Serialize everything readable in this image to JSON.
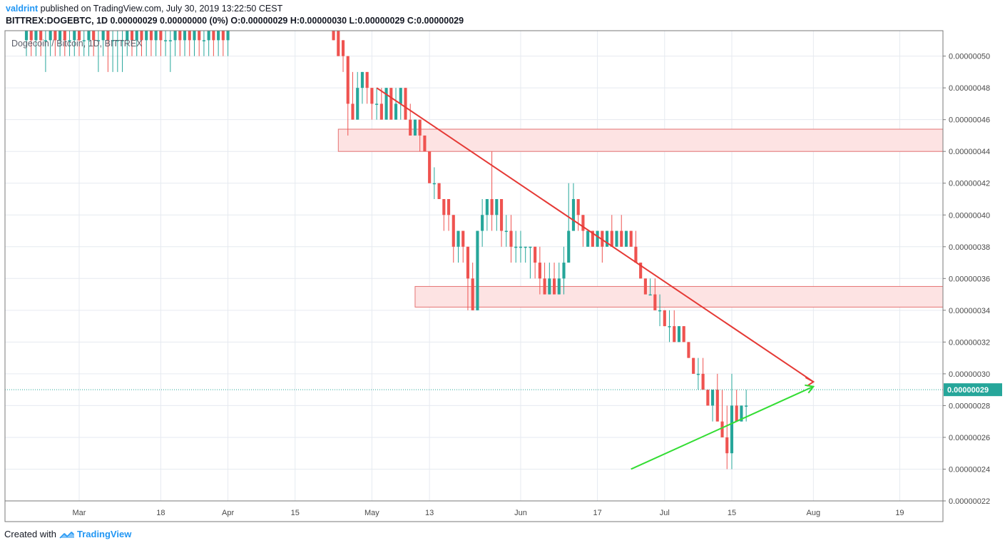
{
  "header": {
    "author": "valdrint",
    "published": " published on TradingView.com, July 30, 2019 13:22:50 CEST",
    "symbol_line": "BITTREX:DOGEBTC, 1D  0.00000029 0.00000000 (0%) O:0.00000029 H:0.00000030 L:0.00000029 C:0.00000029"
  },
  "legend": "Dogecoin / Bitcoin, 1D, BITTREX",
  "footer": {
    "created_with": "Created with",
    "brand": "TradingView"
  },
  "colors": {
    "up": "#26a69a",
    "down": "#ef5350",
    "resistance_line": "#e53935",
    "support_line": "#33dd33",
    "zone_fill": "#fde3e3",
    "zone_stroke": "#e57373",
    "price_badge": "#26a69a",
    "grid": "#e6eaf0"
  },
  "chart_data": {
    "type": "candlestick",
    "title": "Dogecoin / Bitcoin, 1D, BITTREX",
    "y_unit": "BTC",
    "ylim": [
      2.2e-07,
      5.16e-07
    ],
    "y_ticks": [
      "0.00000050",
      "0.00000048",
      "0.00000046",
      "0.00000044",
      "0.00000042",
      "0.00000040",
      "0.00000038",
      "0.00000036",
      "0.00000034",
      "0.00000032",
      "0.00000030",
      "0.00000028",
      "0.00000026",
      "0.00000024",
      "0.00000022"
    ],
    "x_ticks": [
      "Mar",
      "18",
      "Apr",
      "15",
      "May",
      "13",
      "Jun",
      "17",
      "Jul",
      "15",
      "Aug",
      "19"
    ],
    "x_tick_dates": [
      "2019-03-01",
      "2019-03-18",
      "2019-04-01",
      "2019-04-15",
      "2019-05-01",
      "2019-05-13",
      "2019-06-01",
      "2019-06-17",
      "2019-07-01",
      "2019-07-15",
      "2019-08-01",
      "2019-08-19"
    ],
    "xlim": [
      "2019-02-18",
      "2019-08-28"
    ],
    "last_price": "0.00000029",
    "candles": [
      {
        "d": "2019-02-18",
        "o": 5.1e-07,
        "h": 5.2e-07,
        "l": 5e-07,
        "c": 5.2e-07
      },
      {
        "d": "2019-02-19",
        "o": 5.2e-07,
        "h": 5.2e-07,
        "l": 5e-07,
        "c": 5.1e-07
      },
      {
        "d": "2019-02-20",
        "o": 5.1e-07,
        "h": 5.2e-07,
        "l": 5e-07,
        "c": 5.2e-07
      },
      {
        "d": "2019-02-21",
        "o": 5.2e-07,
        "h": 5.2e-07,
        "l": 5e-07,
        "c": 5.1e-07
      },
      {
        "d": "2019-02-22",
        "o": 5.1e-07,
        "h": 5.2e-07,
        "l": 4.9e-07,
        "c": 5.1e-07
      },
      {
        "d": "2019-02-23",
        "o": 5.1e-07,
        "h": 5.2e-07,
        "l": 5e-07,
        "c": 5.2e-07
      },
      {
        "d": "2019-02-24",
        "o": 5.2e-07,
        "h": 5.2e-07,
        "l": 5e-07,
        "c": 5.1e-07
      },
      {
        "d": "2019-02-25",
        "o": 5.1e-07,
        "h": 5.2e-07,
        "l": 5e-07,
        "c": 5.2e-07
      },
      {
        "d": "2019-02-26",
        "o": 5.2e-07,
        "h": 5.2e-07,
        "l": 5e-07,
        "c": 5.1e-07
      },
      {
        "d": "2019-02-27",
        "o": 5.1e-07,
        "h": 5.2e-07,
        "l": 5e-07,
        "c": 5.1e-07
      },
      {
        "d": "2019-02-28",
        "o": 5.1e-07,
        "h": 5.2e-07,
        "l": 5e-07,
        "c": 5.2e-07
      },
      {
        "d": "2019-03-01",
        "o": 5.2e-07,
        "h": 5.2e-07,
        "l": 5e-07,
        "c": 5.1e-07
      },
      {
        "d": "2019-03-02",
        "o": 5.1e-07,
        "h": 5.2e-07,
        "l": 5e-07,
        "c": 5.1e-07
      },
      {
        "d": "2019-03-03",
        "o": 5.1e-07,
        "h": 5.2e-07,
        "l": 5e-07,
        "c": 5.2e-07
      },
      {
        "d": "2019-03-04",
        "o": 5.2e-07,
        "h": 5.2e-07,
        "l": 5e-07,
        "c": 5.1e-07
      },
      {
        "d": "2019-03-05",
        "o": 5.1e-07,
        "h": 5.2e-07,
        "l": 4.9e-07,
        "c": 5.1e-07
      },
      {
        "d": "2019-03-06",
        "o": 5.1e-07,
        "h": 5.2e-07,
        "l": 5e-07,
        "c": 5.2e-07
      },
      {
        "d": "2019-03-07",
        "o": 5.2e-07,
        "h": 5.2e-07,
        "l": 4.9e-07,
        "c": 5.1e-07
      },
      {
        "d": "2019-03-08",
        "o": 5.1e-07,
        "h": 5.2e-07,
        "l": 4.9e-07,
        "c": 5.1e-07
      },
      {
        "d": "2019-03-09",
        "o": 5.1e-07,
        "h": 5.2e-07,
        "l": 4.9e-07,
        "c": 5.1e-07
      },
      {
        "d": "2019-03-10",
        "o": 5.1e-07,
        "h": 5.2e-07,
        "l": 4.9e-07,
        "c": 5.1e-07
      },
      {
        "d": "2019-03-11",
        "o": 5.1e-07,
        "h": 5.2e-07,
        "l": 5e-07,
        "c": 5.2e-07
      },
      {
        "d": "2019-03-12",
        "o": 5.2e-07,
        "h": 5.2e-07,
        "l": 5e-07,
        "c": 5.1e-07
      },
      {
        "d": "2019-03-13",
        "o": 5.1e-07,
        "h": 5.2e-07,
        "l": 5e-07,
        "c": 5.2e-07
      },
      {
        "d": "2019-03-14",
        "o": 5.2e-07,
        "h": 5.2e-07,
        "l": 5e-07,
        "c": 5.1e-07
      },
      {
        "d": "2019-03-15",
        "o": 5.1e-07,
        "h": 5.2e-07,
        "l": 5e-07,
        "c": 5.2e-07
      },
      {
        "d": "2019-03-16",
        "o": 5.2e-07,
        "h": 5.2e-07,
        "l": 5e-07,
        "c": 5.1e-07
      },
      {
        "d": "2019-03-17",
        "o": 5.1e-07,
        "h": 5.2e-07,
        "l": 5e-07,
        "c": 5.2e-07
      },
      {
        "d": "2019-03-18",
        "o": 5.2e-07,
        "h": 5.2e-07,
        "l": 5e-07,
        "c": 5.1e-07
      },
      {
        "d": "2019-03-19",
        "o": 5.1e-07,
        "h": 5.2e-07,
        "l": 5e-07,
        "c": 5.1e-07
      },
      {
        "d": "2019-03-20",
        "o": 5.1e-07,
        "h": 5.2e-07,
        "l": 4.9e-07,
        "c": 5.1e-07
      },
      {
        "d": "2019-03-21",
        "o": 5.1e-07,
        "h": 5.2e-07,
        "l": 5e-07,
        "c": 5.2e-07
      },
      {
        "d": "2019-03-22",
        "o": 5.2e-07,
        "h": 5.2e-07,
        "l": 5e-07,
        "c": 5.1e-07
      },
      {
        "d": "2019-03-23",
        "o": 5.1e-07,
        "h": 5.2e-07,
        "l": 5e-07,
        "c": 5.2e-07
      },
      {
        "d": "2019-03-24",
        "o": 5.2e-07,
        "h": 5.2e-07,
        "l": 5e-07,
        "c": 5.1e-07
      },
      {
        "d": "2019-03-25",
        "o": 5.1e-07,
        "h": 5.2e-07,
        "l": 5e-07,
        "c": 5.2e-07
      },
      {
        "d": "2019-03-26",
        "o": 5.2e-07,
        "h": 5.2e-07,
        "l": 5e-07,
        "c": 5.1e-07
      },
      {
        "d": "2019-03-27",
        "o": 5.1e-07,
        "h": 5.2e-07,
        "l": 5e-07,
        "c": 5.1e-07
      },
      {
        "d": "2019-03-28",
        "o": 5.1e-07,
        "h": 5.2e-07,
        "l": 5e-07,
        "c": 5.2e-07
      },
      {
        "d": "2019-03-29",
        "o": 5.2e-07,
        "h": 5.2e-07,
        "l": 5e-07,
        "c": 5.1e-07
      },
      {
        "d": "2019-03-30",
        "o": 5.1e-07,
        "h": 5.2e-07,
        "l": 5e-07,
        "c": 5.2e-07
      },
      {
        "d": "2019-03-31",
        "o": 5.2e-07,
        "h": 5.2e-07,
        "l": 5e-07,
        "c": 5.1e-07
      },
      {
        "d": "2019-04-01",
        "o": 5.1e-07,
        "h": 5.2e-07,
        "l": 5e-07,
        "c": 5.2e-07
      },
      {
        "d": "2019-04-23",
        "o": 5.2e-07,
        "h": 5.2e-07,
        "l": 5.1e-07,
        "c": 5.1e-07
      },
      {
        "d": "2019-04-24",
        "o": 5.2e-07,
        "h": 5.2e-07,
        "l": 5e-07,
        "c": 5e-07
      },
      {
        "d": "2019-04-25",
        "o": 5.1e-07,
        "h": 5.1e-07,
        "l": 4.9e-07,
        "c": 5e-07
      },
      {
        "d": "2019-04-26",
        "o": 5e-07,
        "h": 5e-07,
        "l": 4.5e-07,
        "c": 4.7e-07
      },
      {
        "d": "2019-04-27",
        "o": 4.7e-07,
        "h": 4.9e-07,
        "l": 4.6e-07,
        "c": 4.6e-07
      },
      {
        "d": "2019-04-28",
        "o": 4.6e-07,
        "h": 4.9e-07,
        "l": 4.6e-07,
        "c": 4.8e-07
      },
      {
        "d": "2019-04-29",
        "o": 4.8e-07,
        "h": 4.9e-07,
        "l": 4.7e-07,
        "c": 4.9e-07
      },
      {
        "d": "2019-04-30",
        "o": 4.9e-07,
        "h": 4.9e-07,
        "l": 4.7e-07,
        "c": 4.8e-07
      },
      {
        "d": "2019-05-01",
        "o": 4.8e-07,
        "h": 4.8e-07,
        "l": 4.6e-07,
        "c": 4.7e-07
      },
      {
        "d": "2019-05-02",
        "o": 4.7e-07,
        "h": 4.8e-07,
        "l": 4.6e-07,
        "c": 4.7e-07
      },
      {
        "d": "2019-05-03",
        "o": 4.7e-07,
        "h": 4.8e-07,
        "l": 4.6e-07,
        "c": 4.6e-07
      },
      {
        "d": "2019-05-04",
        "o": 4.6e-07,
        "h": 4.8e-07,
        "l": 4.6e-07,
        "c": 4.8e-07
      },
      {
        "d": "2019-05-05",
        "o": 4.8e-07,
        "h": 4.8e-07,
        "l": 4.6e-07,
        "c": 4.6e-07
      },
      {
        "d": "2019-05-06",
        "o": 4.6e-07,
        "h": 4.8e-07,
        "l": 4.6e-07,
        "c": 4.7e-07
      },
      {
        "d": "2019-05-07",
        "o": 4.7e-07,
        "h": 4.8e-07,
        "l": 4.6e-07,
        "c": 4.8e-07
      },
      {
        "d": "2019-05-08",
        "o": 4.8e-07,
        "h": 4.8e-07,
        "l": 4.6e-07,
        "c": 4.6e-07
      },
      {
        "d": "2019-05-09",
        "o": 4.6e-07,
        "h": 4.7e-07,
        "l": 4.5e-07,
        "c": 4.5e-07
      },
      {
        "d": "2019-05-10",
        "o": 4.5e-07,
        "h": 4.6e-07,
        "l": 4.5e-07,
        "c": 4.6e-07
      },
      {
        "d": "2019-05-11",
        "o": 4.6e-07,
        "h": 4.6e-07,
        "l": 4.4e-07,
        "c": 4.5e-07
      },
      {
        "d": "2019-05-12",
        "o": 4.5e-07,
        "h": 4.5e-07,
        "l": 4.4e-07,
        "c": 4.4e-07
      },
      {
        "d": "2019-05-13",
        "o": 4.4e-07,
        "h": 4.4e-07,
        "l": 4.2e-07,
        "c": 4.2e-07
      },
      {
        "d": "2019-05-14",
        "o": 4.2e-07,
        "h": 4.3e-07,
        "l": 4.1e-07,
        "c": 4.2e-07
      },
      {
        "d": "2019-05-15",
        "o": 4.2e-07,
        "h": 4.2e-07,
        "l": 4.1e-07,
        "c": 4.1e-07
      },
      {
        "d": "2019-05-16",
        "o": 4.1e-07,
        "h": 4.1e-07,
        "l": 3.9e-07,
        "c": 4e-07
      },
      {
        "d": "2019-05-17",
        "o": 4.1e-07,
        "h": 4.1e-07,
        "l": 3.9e-07,
        "c": 4e-07
      },
      {
        "d": "2019-05-18",
        "o": 4e-07,
        "h": 4e-07,
        "l": 3.7e-07,
        "c": 3.8e-07
      },
      {
        "d": "2019-05-19",
        "o": 3.8e-07,
        "h": 3.9e-07,
        "l": 3.7e-07,
        "c": 3.9e-07
      },
      {
        "d": "2019-05-20",
        "o": 3.9e-07,
        "h": 3.9e-07,
        "l": 3.7e-07,
        "c": 3.8e-07
      },
      {
        "d": "2019-05-21",
        "o": 3.8e-07,
        "h": 3.8e-07,
        "l": 3.4e-07,
        "c": 3.6e-07
      },
      {
        "d": "2019-05-22",
        "o": 3.6e-07,
        "h": 3.7e-07,
        "l": 3.4e-07,
        "c": 3.4e-07
      },
      {
        "d": "2019-05-23",
        "o": 3.4e-07,
        "h": 3.9e-07,
        "l": 3.4e-07,
        "c": 3.9e-07
      },
      {
        "d": "2019-05-24",
        "o": 3.9e-07,
        "h": 4.1e-07,
        "l": 3.8e-07,
        "c": 4e-07
      },
      {
        "d": "2019-05-25",
        "o": 4e-07,
        "h": 4.1e-07,
        "l": 3.9e-07,
        "c": 4.1e-07
      },
      {
        "d": "2019-05-26",
        "o": 4.1e-07,
        "h": 4.4e-07,
        "l": 3.9e-07,
        "c": 4e-07
      },
      {
        "d": "2019-05-27",
        "o": 4e-07,
        "h": 4.1e-07,
        "l": 3.9e-07,
        "c": 4.1e-07
      },
      {
        "d": "2019-05-28",
        "o": 4.1e-07,
        "h": 4.1e-07,
        "l": 3.8e-07,
        "c": 3.9e-07
      },
      {
        "d": "2019-05-29",
        "o": 3.9e-07,
        "h": 4e-07,
        "l": 3.8e-07,
        "c": 3.9e-07
      },
      {
        "d": "2019-05-30",
        "o": 3.9e-07,
        "h": 4e-07,
        "l": 3.7e-07,
        "c": 3.8e-07
      },
      {
        "d": "2019-05-31",
        "o": 3.8e-07,
        "h": 3.9e-07,
        "l": 3.7e-07,
        "c": 3.8e-07
      },
      {
        "d": "2019-06-01",
        "o": 3.8e-07,
        "h": 3.9e-07,
        "l": 3.7e-07,
        "c": 3.8e-07
      },
      {
        "d": "2019-06-02",
        "o": 3.8e-07,
        "h": 3.8e-07,
        "l": 3.7e-07,
        "c": 3.8e-07
      },
      {
        "d": "2019-06-03",
        "o": 3.8e-07,
        "h": 3.8e-07,
        "l": 3.6e-07,
        "c": 3.8e-07
      },
      {
        "d": "2019-06-04",
        "o": 3.8e-07,
        "h": 3.8e-07,
        "l": 3.6e-07,
        "c": 3.7e-07
      },
      {
        "d": "2019-06-05",
        "o": 3.7e-07,
        "h": 3.8e-07,
        "l": 3.5e-07,
        "c": 3.6e-07
      },
      {
        "d": "2019-06-06",
        "o": 3.6e-07,
        "h": 3.7e-07,
        "l": 3.5e-07,
        "c": 3.5e-07
      },
      {
        "d": "2019-06-07",
        "o": 3.5e-07,
        "h": 3.7e-07,
        "l": 3.5e-07,
        "c": 3.6e-07
      },
      {
        "d": "2019-06-08",
        "o": 3.6e-07,
        "h": 3.7e-07,
        "l": 3.5e-07,
        "c": 3.5e-07
      },
      {
        "d": "2019-06-09",
        "o": 3.5e-07,
        "h": 3.7e-07,
        "l": 3.5e-07,
        "c": 3.6e-07
      },
      {
        "d": "2019-06-10",
        "o": 3.6e-07,
        "h": 3.8e-07,
        "l": 3.5e-07,
        "c": 3.7e-07
      },
      {
        "d": "2019-06-11",
        "o": 3.7e-07,
        "h": 4.2e-07,
        "l": 3.7e-07,
        "c": 3.9e-07
      },
      {
        "d": "2019-06-12",
        "o": 3.9e-07,
        "h": 4.2e-07,
        "l": 3.9e-07,
        "c": 4.1e-07
      },
      {
        "d": "2019-06-13",
        "o": 4.1e-07,
        "h": 4.1e-07,
        "l": 3.9e-07,
        "c": 4e-07
      },
      {
        "d": "2019-06-14",
        "o": 4e-07,
        "h": 4e-07,
        "l": 3.8e-07,
        "c": 3.9e-07
      },
      {
        "d": "2019-06-15",
        "o": 3.8e-07,
        "h": 3.9e-07,
        "l": 3.8e-07,
        "c": 3.9e-07
      },
      {
        "d": "2019-06-16",
        "o": 3.9e-07,
        "h": 3.9e-07,
        "l": 3.8e-07,
        "c": 3.8e-07
      },
      {
        "d": "2019-06-17",
        "o": 3.8e-07,
        "h": 3.9e-07,
        "l": 3.8e-07,
        "c": 3.9e-07
      },
      {
        "d": "2019-06-18",
        "o": 3.9e-07,
        "h": 3.9e-07,
        "l": 3.7e-07,
        "c": 3.8e-07
      },
      {
        "d": "2019-06-19",
        "o": 3.8e-07,
        "h": 3.9e-07,
        "l": 3.8e-07,
        "c": 3.9e-07
      },
      {
        "d": "2019-06-20",
        "o": 3.9e-07,
        "h": 4e-07,
        "l": 3.8e-07,
        "c": 3.8e-07
      },
      {
        "d": "2019-06-21",
        "o": 3.8e-07,
        "h": 3.9e-07,
        "l": 3.8e-07,
        "c": 3.9e-07
      },
      {
        "d": "2019-06-22",
        "o": 3.9e-07,
        "h": 4e-07,
        "l": 3.8e-07,
        "c": 3.8e-07
      },
      {
        "d": "2019-06-23",
        "o": 3.8e-07,
        "h": 3.9e-07,
        "l": 3.8e-07,
        "c": 3.9e-07
      },
      {
        "d": "2019-06-24",
        "o": 3.9e-07,
        "h": 3.9e-07,
        "l": 3.8e-07,
        "c": 3.8e-07
      },
      {
        "d": "2019-06-25",
        "o": 3.8e-07,
        "h": 3.9e-07,
        "l": 3.7e-07,
        "c": 3.7e-07
      },
      {
        "d": "2019-06-26",
        "o": 3.7e-07,
        "h": 3.7e-07,
        "l": 3.6e-07,
        "c": 3.6e-07
      },
      {
        "d": "2019-06-27",
        "o": 3.6e-07,
        "h": 3.6e-07,
        "l": 3.5e-07,
        "c": 3.5e-07
      },
      {
        "d": "2019-06-28",
        "o": 3.5e-07,
        "h": 3.6e-07,
        "l": 3.5e-07,
        "c": 3.5e-07
      },
      {
        "d": "2019-06-29",
        "o": 3.5e-07,
        "h": 3.6e-07,
        "l": 3.4e-07,
        "c": 3.4e-07
      },
      {
        "d": "2019-06-30",
        "o": 3.4e-07,
        "h": 3.5e-07,
        "l": 3.3e-07,
        "c": 3.4e-07
      },
      {
        "d": "2019-07-01",
        "o": 3.4e-07,
        "h": 3.4e-07,
        "l": 3.3e-07,
        "c": 3.3e-07
      },
      {
        "d": "2019-07-02",
        "o": 3.3e-07,
        "h": 3.4e-07,
        "l": 3.2e-07,
        "c": 3.3e-07
      },
      {
        "d": "2019-07-03",
        "o": 3.3e-07,
        "h": 3.4e-07,
        "l": 3.2e-07,
        "c": 3.2e-07
      },
      {
        "d": "2019-07-04",
        "o": 3.2e-07,
        "h": 3.3e-07,
        "l": 3.2e-07,
        "c": 3.3e-07
      },
      {
        "d": "2019-07-05",
        "o": 3.3e-07,
        "h": 3.3e-07,
        "l": 3.2e-07,
        "c": 3.2e-07
      },
      {
        "d": "2019-07-06",
        "o": 3.2e-07,
        "h": 3.2e-07,
        "l": 3.1e-07,
        "c": 3.1e-07
      },
      {
        "d": "2019-07-07",
        "o": 3.1e-07,
        "h": 3.1e-07,
        "l": 3e-07,
        "c": 3e-07
      },
      {
        "d": "2019-07-08",
        "o": 3e-07,
        "h": 3.1e-07,
        "l": 2.9e-07,
        "c": 3e-07
      },
      {
        "d": "2019-07-09",
        "o": 3e-07,
        "h": 3.1e-07,
        "l": 2.9e-07,
        "c": 2.9e-07
      },
      {
        "d": "2019-07-10",
        "o": 2.9e-07,
        "h": 2.9e-07,
        "l": 2.8e-07,
        "c": 2.8e-07
      },
      {
        "d": "2019-07-11",
        "o": 2.8e-07,
        "h": 2.9e-07,
        "l": 2.7e-07,
        "c": 2.9e-07
      },
      {
        "d": "2019-07-12",
        "o": 2.9e-07,
        "h": 3e-07,
        "l": 2.7e-07,
        "c": 2.7e-07
      },
      {
        "d": "2019-07-13",
        "o": 2.7e-07,
        "h": 2.9e-07,
        "l": 2.6e-07,
        "c": 2.6e-07
      },
      {
        "d": "2019-07-14",
        "o": 2.6e-07,
        "h": 2.8e-07,
        "l": 2.4e-07,
        "c": 2.5e-07
      },
      {
        "d": "2019-07-15",
        "o": 2.5e-07,
        "h": 3e-07,
        "l": 2.4e-07,
        "c": 2.8e-07
      },
      {
        "d": "2019-07-16",
        "o": 2.8e-07,
        "h": 2.9e-07,
        "l": 2.7e-07,
        "c": 2.7e-07
      },
      {
        "d": "2019-07-17",
        "o": 2.7e-07,
        "h": 2.8e-07,
        "l": 2.7e-07,
        "c": 2.8e-07
      },
      {
        "d": "2019-07-18",
        "o": 2.8e-07,
        "h": 2.9e-07,
        "l": 2.7e-07,
        "c": 2.8e-07
      }
    ],
    "annotations": {
      "resistance_zones": [
        {
          "x0": "2019-04-24",
          "x1": "2019-08-28",
          "y0": 4.4e-07,
          "y1": 4.54e-07
        },
        {
          "x0": "2019-05-10",
          "x1": "2019-08-28",
          "y0": 3.42e-07,
          "y1": 3.55e-07
        }
      ],
      "descending_trendline": {
        "from": {
          "d": "2019-05-02",
          "v": 4.8e-07
        },
        "to": {
          "d": "2019-08-01",
          "v": 2.95e-07
        }
      },
      "ascending_trendline": {
        "from": {
          "d": "2019-06-24",
          "v": 2.4e-07
        },
        "to": {
          "d": "2019-08-01",
          "v": 2.92e-07
        }
      }
    }
  }
}
